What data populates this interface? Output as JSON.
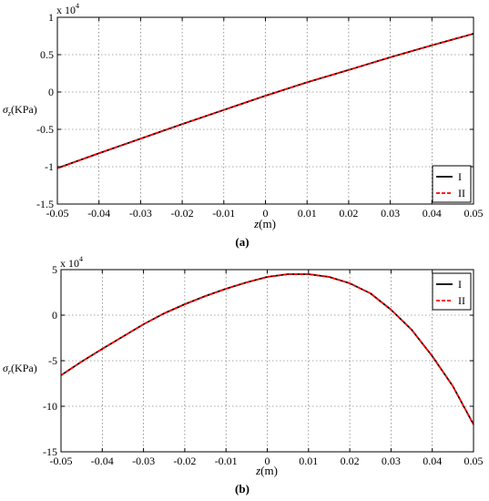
{
  "chart_data": [
    {
      "type": "line",
      "panel_label": "(a)",
      "title": "",
      "xlabel": "z(m)",
      "ylabel": "σz(KPa)",
      "y_multiplier": "x 10",
      "y_multiplier_exp": "4",
      "xlim": [
        -0.05,
        0.05
      ],
      "ylim": [
        -1.5,
        1.0
      ],
      "x_ticks": [
        -0.05,
        -0.04,
        -0.03,
        -0.02,
        -0.01,
        0,
        0.01,
        0.02,
        0.03,
        0.04,
        0.05
      ],
      "x_tick_labels": [
        "-0.05",
        "-0.04",
        "-0.03",
        "-0.02",
        "-0.01",
        "0",
        "0.01",
        "0.02",
        "0.03",
        "0.04",
        "0.05"
      ],
      "y_ticks": [
        -1.5,
        -1,
        -0.5,
        0,
        0.5,
        1
      ],
      "y_tick_labels": [
        "-1.5",
        "-1",
        "-0.5",
        "0",
        "0.5",
        "1"
      ],
      "grid": true,
      "legend_position": "bottom-right",
      "series": [
        {
          "name": "I",
          "color": "#000000",
          "dash": "solid",
          "x": [
            -0.05,
            -0.04,
            -0.03,
            -0.02,
            -0.01,
            0,
            0.01,
            0.02,
            0.03,
            0.04,
            0.05
          ],
          "y": [
            -1.02,
            -0.82,
            -0.625,
            -0.43,
            -0.24,
            -0.05,
            0.13,
            0.295,
            0.465,
            0.625,
            0.78
          ]
        },
        {
          "name": "II",
          "color": "#ff0000",
          "dash": "dashed",
          "x": [
            -0.05,
            -0.04,
            -0.03,
            -0.02,
            -0.01,
            0,
            0.01,
            0.02,
            0.03,
            0.04,
            0.05
          ],
          "y": [
            -1.02,
            -0.82,
            -0.625,
            -0.43,
            -0.24,
            -0.05,
            0.13,
            0.295,
            0.465,
            0.625,
            0.78
          ]
        }
      ]
    },
    {
      "type": "line",
      "panel_label": "(b)",
      "title": "",
      "xlabel": "z(m)",
      "ylabel": "σr(KPa)",
      "y_multiplier": "x 10",
      "y_multiplier_exp": "4",
      "xlim": [
        -0.05,
        0.05
      ],
      "ylim": [
        -15,
        5
      ],
      "x_ticks": [
        -0.05,
        -0.04,
        -0.03,
        -0.02,
        -0.01,
        0,
        0.01,
        0.02,
        0.03,
        0.04,
        0.05
      ],
      "x_tick_labels": [
        "-0.05",
        "-0.04",
        "-0.03",
        "-0.02",
        "-0.01",
        "0",
        "0.01",
        "0.02",
        "0.03",
        "0.04",
        "0.05"
      ],
      "y_ticks": [
        -15,
        -10,
        -5,
        0,
        5
      ],
      "y_tick_labels": [
        "-15",
        "-10",
        "-5",
        "0",
        "5"
      ],
      "grid": true,
      "legend_position": "top-right",
      "series": [
        {
          "name": "I",
          "color": "#000000",
          "dash": "solid",
          "x": [
            -0.05,
            -0.045,
            -0.04,
            -0.035,
            -0.03,
            -0.025,
            -0.02,
            -0.015,
            -0.01,
            -0.005,
            0,
            0.005,
            0.01,
            0.015,
            0.02,
            0.025,
            0.03,
            0.035,
            0.04,
            0.045,
            0.05
          ],
          "y": [
            -6.6,
            -5.1,
            -3.7,
            -2.35,
            -1.0,
            0.2,
            1.2,
            2.1,
            2.9,
            3.6,
            4.2,
            4.5,
            4.5,
            4.2,
            3.5,
            2.4,
            0.6,
            -1.6,
            -4.5,
            -7.8,
            -12.0
          ]
        },
        {
          "name": "II",
          "color": "#ff0000",
          "dash": "dashed",
          "x": [
            -0.05,
            -0.045,
            -0.04,
            -0.035,
            -0.03,
            -0.025,
            -0.02,
            -0.015,
            -0.01,
            -0.005,
            0,
            0.005,
            0.01,
            0.015,
            0.02,
            0.025,
            0.03,
            0.035,
            0.04,
            0.045,
            0.05
          ],
          "y": [
            -6.6,
            -5.1,
            -3.7,
            -2.35,
            -1.0,
            0.2,
            1.2,
            2.1,
            2.9,
            3.6,
            4.2,
            4.5,
            4.5,
            4.2,
            3.5,
            2.4,
            0.6,
            -1.6,
            -4.5,
            -7.8,
            -12.0
          ]
        }
      ]
    }
  ]
}
